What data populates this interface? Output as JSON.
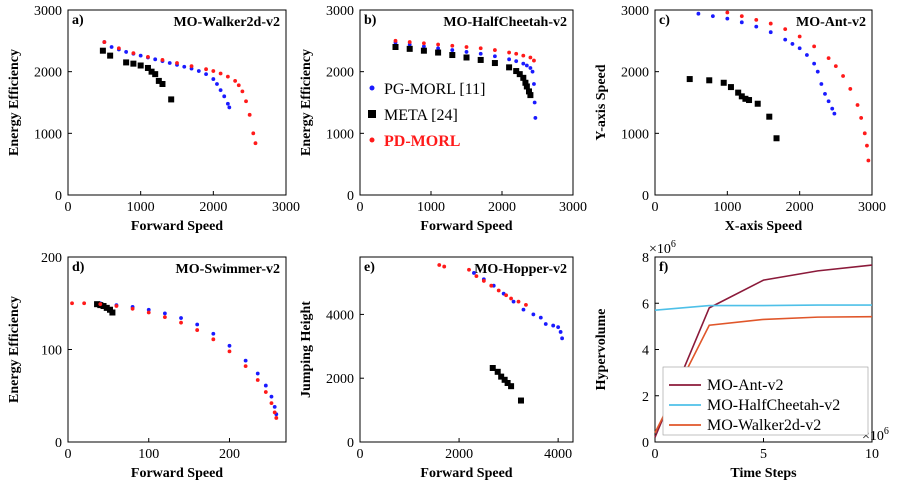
{
  "colors": {
    "pgmorl": "#1a1aff",
    "meta": "#000000",
    "pdmorl": "#ff1a1a",
    "ant_line": "#8b1a3a",
    "halfcheetah_line": "#4ec0e8",
    "walker_line": "#e0562a"
  },
  "chart_data": [
    {
      "label": "a)",
      "type": "scatter",
      "title": "MO-Walker2d-v2",
      "xlabel": "Forward Speed",
      "ylabel": "Energy Efficiency",
      "xlim": [
        0,
        3000
      ],
      "ylim": [
        0,
        3000
      ],
      "xticks": [
        "0",
        "1000",
        "2000",
        "3000"
      ],
      "yticks": [
        "0",
        "1000",
        "2000",
        "3000"
      ],
      "series": [
        {
          "name": "PG-MORL [11]",
          "color": "#1a1aff",
          "marker": "dot",
          "x": [
            500,
            600,
            700,
            800,
            900,
            1000,
            1100,
            1200,
            1300,
            1400,
            1500,
            1600,
            1700,
            1800,
            1900,
            2000,
            2050,
            2100,
            2150,
            2200,
            2220
          ],
          "y": [
            2480,
            2400,
            2360,
            2320,
            2290,
            2260,
            2230,
            2200,
            2170,
            2140,
            2110,
            2080,
            2050,
            2010,
            1960,
            1880,
            1800,
            1700,
            1600,
            1480,
            1420
          ]
        },
        {
          "name": "META [24]",
          "color": "#000000",
          "marker": "square",
          "x": [
            480,
            580,
            800,
            900,
            1000,
            1100,
            1150,
            1200,
            1250,
            1300,
            1420
          ],
          "y": [
            2340,
            2260,
            2150,
            2130,
            2100,
            2060,
            2000,
            1960,
            1850,
            1800,
            1550
          ]
        },
        {
          "name": "PD-MORL",
          "color": "#ff1a1a",
          "marker": "dot",
          "x": [
            500,
            700,
            900,
            1100,
            1300,
            1500,
            1700,
            1900,
            2000,
            2100,
            2200,
            2300,
            2350,
            2400,
            2450,
            2500,
            2550,
            2580
          ],
          "y": [
            2480,
            2380,
            2300,
            2240,
            2190,
            2140,
            2090,
            2040,
            2010,
            1970,
            1920,
            1850,
            1780,
            1680,
            1520,
            1300,
            1000,
            840
          ]
        }
      ]
    },
    {
      "label": "b)",
      "type": "scatter",
      "title": "MO-HalfCheetah-v2",
      "xlabel": "Forward Speed",
      "ylabel": "Energy Efficiency",
      "xlim": [
        0,
        3000
      ],
      "ylim": [
        0,
        3000
      ],
      "xticks": [
        "0",
        "1000",
        "2000",
        "3000"
      ],
      "yticks": [
        "0",
        "1000",
        "2000",
        "3000"
      ],
      "legend": {
        "position": "inside-left",
        "entries": [
          "PG-MORL [11]",
          "META [24]",
          "PD-MORL"
        ]
      },
      "series": [
        {
          "name": "PG-MORL [11]",
          "color": "#1a1aff",
          "marker": "dot",
          "x": [
            500,
            700,
            900,
            1100,
            1300,
            1500,
            1700,
            1900,
            2100,
            2200,
            2300,
            2350,
            2400,
            2430,
            2450,
            2460,
            2470
          ],
          "y": [
            2470,
            2440,
            2410,
            2380,
            2350,
            2320,
            2290,
            2250,
            2200,
            2170,
            2130,
            2100,
            2060,
            2000,
            1800,
            1500,
            1250
          ]
        },
        {
          "name": "META [24]",
          "color": "#000000",
          "marker": "square",
          "x": [
            500,
            700,
            900,
            1100,
            1300,
            1500,
            1700,
            1900,
            2100,
            2200,
            2250,
            2300,
            2330,
            2350,
            2380,
            2400
          ],
          "y": [
            2400,
            2370,
            2340,
            2310,
            2270,
            2230,
            2190,
            2140,
            2070,
            2010,
            1960,
            1900,
            1820,
            1760,
            1680,
            1620
          ]
        },
        {
          "name": "PD-MORL",
          "color": "#ff1a1a",
          "marker": "dot",
          "x": [
            500,
            700,
            900,
            1100,
            1300,
            1500,
            1700,
            1900,
            2100,
            2200,
            2300,
            2400,
            2450
          ],
          "y": [
            2500,
            2480,
            2460,
            2440,
            2420,
            2400,
            2380,
            2350,
            2310,
            2290,
            2260,
            2230,
            2180
          ]
        }
      ]
    },
    {
      "label": "c)",
      "type": "scatter",
      "title": "MO-Ant-v2",
      "xlabel": "X-axis Speed",
      "ylabel": "Y-axis Speed",
      "xlim": [
        0,
        3000
      ],
      "ylim": [
        0,
        3000
      ],
      "xticks": [
        "0",
        "1000",
        "2000",
        "3000"
      ],
      "yticks": [
        "0",
        "1000",
        "2000",
        "3000"
      ],
      "series": [
        {
          "name": "PG-MORL [11]",
          "color": "#1a1aff",
          "marker": "dot",
          "x": [
            600,
            800,
            1000,
            1200,
            1400,
            1600,
            1800,
            1900,
            2000,
            2100,
            2200,
            2250,
            2300,
            2350,
            2400,
            2450,
            2480
          ],
          "y": [
            2940,
            2900,
            2860,
            2800,
            2730,
            2640,
            2520,
            2450,
            2380,
            2270,
            2130,
            2000,
            1800,
            1640,
            1520,
            1400,
            1320
          ]
        },
        {
          "name": "META [24]",
          "color": "#000000",
          "marker": "square",
          "x": [
            480,
            750,
            950,
            1050,
            1150,
            1200,
            1250,
            1300,
            1420,
            1580,
            1680
          ],
          "y": [
            1880,
            1860,
            1820,
            1750,
            1660,
            1600,
            1560,
            1540,
            1480,
            1270,
            920
          ]
        },
        {
          "name": "PD-MORL",
          "color": "#ff1a1a",
          "marker": "dot",
          "x": [
            1000,
            1200,
            1400,
            1600,
            1800,
            2000,
            2200,
            2400,
            2500,
            2600,
            2700,
            2800,
            2850,
            2900,
            2930,
            2950
          ],
          "y": [
            2960,
            2900,
            2840,
            2780,
            2690,
            2570,
            2410,
            2220,
            2090,
            1930,
            1720,
            1460,
            1250,
            1000,
            800,
            560
          ]
        }
      ]
    },
    {
      "label": "d)",
      "type": "scatter",
      "title": "MO-Swimmer-v2",
      "xlabel": "Forward Speed",
      "ylabel": "Energy Efficiency",
      "xlim": [
        0,
        270
      ],
      "ylim": [
        0,
        200
      ],
      "xticks": [
        "0",
        "100",
        "200"
      ],
      "yticks": [
        "0",
        "100",
        "200"
      ],
      "series": [
        {
          "name": "PG-MORL [11]",
          "color": "#1a1aff",
          "marker": "dot",
          "x": [
            40,
            60,
            80,
            100,
            120,
            140,
            160,
            180,
            200,
            220,
            235,
            245,
            252,
            256,
            258
          ],
          "y": [
            150,
            148,
            146,
            143,
            139,
            134,
            127,
            117,
            104,
            88,
            74,
            61,
            49,
            38,
            30
          ]
        },
        {
          "name": "META [24]",
          "color": "#000000",
          "marker": "square",
          "x": [
            36,
            40,
            44,
            48,
            52,
            55
          ],
          "y": [
            149,
            148,
            147,
            145,
            143,
            140
          ]
        },
        {
          "name": "PD-MORL",
          "color": "#ff1a1a",
          "marker": "dot",
          "x": [
            5,
            20,
            40,
            60,
            80,
            100,
            120,
            140,
            160,
            180,
            200,
            220,
            235,
            245,
            252,
            256,
            258
          ],
          "y": [
            150,
            150,
            149,
            147,
            144,
            140,
            135,
            129,
            121,
            111,
            98,
            82,
            67,
            54,
            42,
            32,
            26
          ]
        }
      ]
    },
    {
      "label": "e)",
      "type": "scatter",
      "title": "MO-Hopper-v2",
      "xlabel": "Forward Speed",
      "ylabel": "Jumping Height",
      "xlim": [
        0,
        4300
      ],
      "ylim": [
        0,
        5800
      ],
      "xticks": [
        "0",
        "2000",
        "4000"
      ],
      "yticks": [
        "0",
        "2000",
        "4000"
      ],
      "series": [
        {
          "name": "PG-MORL [11]",
          "color": "#1a1aff",
          "marker": "dot",
          "x": [
            2300,
            2500,
            2700,
            2900,
            3100,
            3300,
            3500,
            3650,
            3750,
            3900,
            4000,
            4050,
            4080
          ],
          "y": [
            5300,
            5100,
            4900,
            4650,
            4400,
            4150,
            4000,
            3900,
            3700,
            3650,
            3600,
            3450,
            3250
          ]
        },
        {
          "name": "META [24]",
          "color": "#000000",
          "marker": "square",
          "x": [
            2680,
            2780,
            2850,
            2920,
            2980,
            3050,
            3250
          ],
          "y": [
            2320,
            2200,
            2050,
            1950,
            1850,
            1750,
            1300
          ]
        },
        {
          "name": "PD-MORL",
          "color": "#ff1a1a",
          "marker": "dot",
          "x": [
            1600,
            1700,
            2200,
            2350,
            2500,
            2650,
            2800,
            2950,
            3050,
            3200,
            3350
          ],
          "y": [
            5550,
            5500,
            5400,
            5200,
            5050,
            4900,
            4750,
            4600,
            4500,
            4400,
            4300
          ]
        }
      ]
    },
    {
      "label": "f)",
      "type": "line",
      "xlabel": "Time Steps",
      "ylabel": "Hypervolume",
      "xlim": [
        0,
        10
      ],
      "ylim": [
        0,
        8
      ],
      "xticks": [
        "0",
        "5",
        "10"
      ],
      "yticks": [
        "0",
        "2",
        "4",
        "6",
        "8"
      ],
      "x_multiplier": "×10",
      "y_multiplier": "×10",
      "multiplier_exp": "6",
      "legend": {
        "position": "bottom-left",
        "entries": [
          "MO-Ant-v2",
          "MO-HalfCheetah-v2",
          "MO-Walker2d-v2"
        ]
      },
      "series": [
        {
          "name": "MO-Ant-v2",
          "color": "#8b1a3a",
          "x": [
            0,
            2.5,
            5,
            7.5,
            10
          ],
          "y": [
            0.2,
            5.8,
            7.0,
            7.4,
            7.65
          ]
        },
        {
          "name": "MO-HalfCheetah-v2",
          "color": "#4ec0e8",
          "x": [
            0,
            2.5,
            5,
            7.5,
            10
          ],
          "y": [
            5.7,
            5.9,
            5.9,
            5.92,
            5.92
          ]
        },
        {
          "name": "MO-Walker2d-v2",
          "color": "#e0562a",
          "x": [
            0,
            2.5,
            5,
            7.5,
            10
          ],
          "y": [
            0.4,
            5.05,
            5.3,
            5.4,
            5.42
          ]
        }
      ]
    }
  ]
}
